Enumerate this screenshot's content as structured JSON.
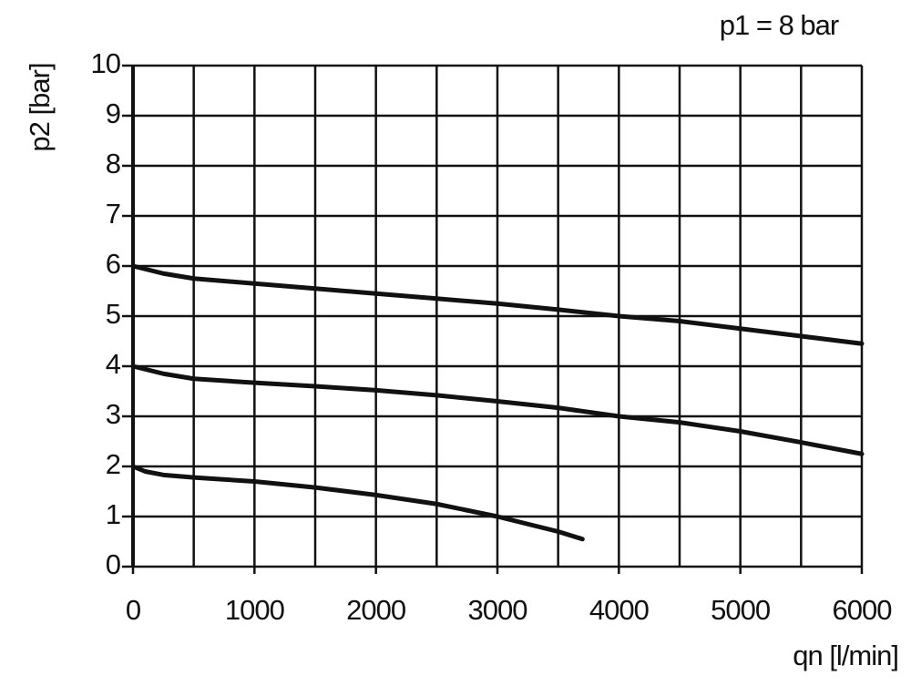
{
  "chart_data": {
    "type": "line",
    "annotation": "p1 = 8 bar",
    "x_label": "qn [l/min]",
    "y_label": "p2 [bar]",
    "xlim": [
      0,
      6000
    ],
    "ylim": [
      0,
      10
    ],
    "xticks": [
      0,
      1000,
      2000,
      3000,
      4000,
      5000,
      6000
    ],
    "x_minor_ticks": [
      500,
      1500,
      2500,
      3500,
      4500,
      5500
    ],
    "yticks": [
      0,
      1,
      2,
      3,
      4,
      5,
      6,
      7,
      8,
      9,
      10
    ],
    "grid": true,
    "series": [
      {
        "color": "#111111",
        "x": [
          0,
          250,
          500,
          1000,
          1500,
          2000,
          2500,
          3000,
          3500,
          4000,
          4500,
          5000,
          5500,
          6000
        ],
        "values": [
          6.0,
          5.85,
          5.75,
          5.65,
          5.55,
          5.45,
          5.35,
          5.25,
          5.13,
          5.0,
          4.9,
          4.75,
          4.6,
          4.45
        ]
      },
      {
        "color": "#111111",
        "x": [
          0,
          250,
          500,
          1000,
          1500,
          2000,
          2500,
          3000,
          3500,
          4000,
          4500,
          5000,
          5500,
          6000
        ],
        "values": [
          4.0,
          3.85,
          3.75,
          3.67,
          3.6,
          3.52,
          3.42,
          3.3,
          3.17,
          3.0,
          2.88,
          2.7,
          2.48,
          2.25
        ]
      },
      {
        "color": "#111111",
        "x": [
          0,
          100,
          250,
          500,
          1000,
          1500,
          2000,
          2500,
          3000,
          3500,
          3700
        ],
        "values": [
          2.0,
          1.9,
          1.83,
          1.78,
          1.7,
          1.58,
          1.43,
          1.25,
          1.0,
          0.7,
          0.55
        ]
      }
    ]
  }
}
